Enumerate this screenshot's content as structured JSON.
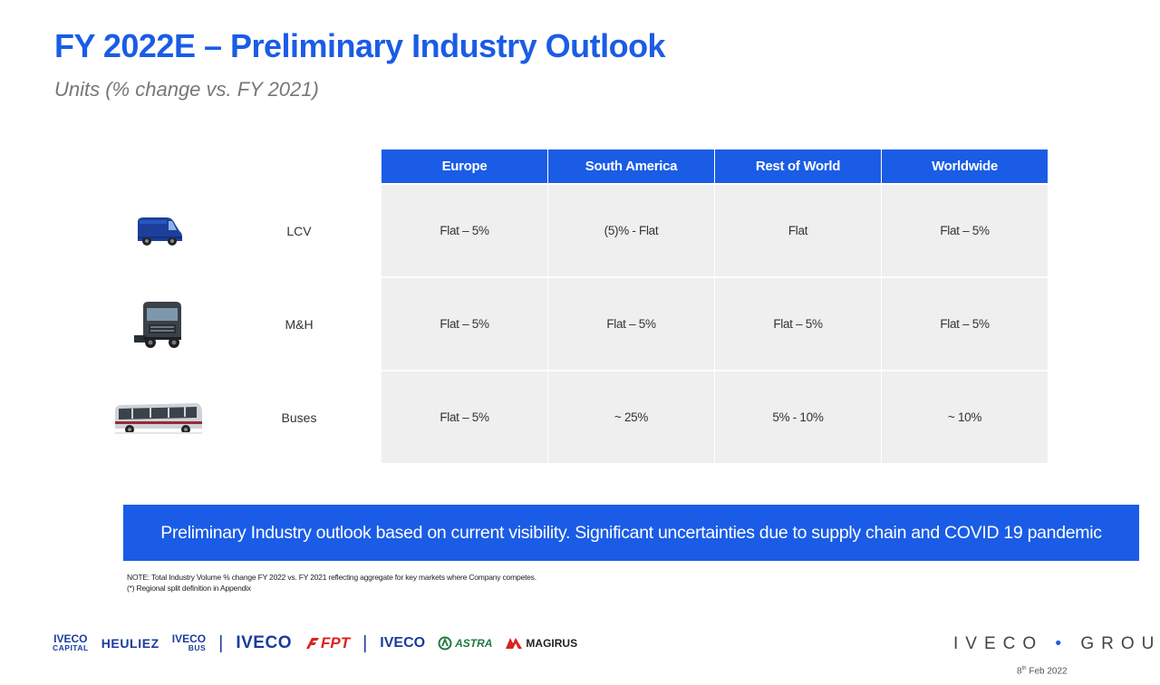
{
  "title": "FY 2022E – Preliminary Industry Outlook",
  "subtitle": "Units (% change vs. FY 2021)",
  "table": {
    "columns": [
      "Europe",
      "South America",
      "Rest of World",
      "Worldwide"
    ],
    "rows": [
      {
        "label": "LCV",
        "icon": "van-icon",
        "values": [
          "Flat – 5%",
          "(5)% - Flat",
          "Flat",
          "Flat – 5%"
        ]
      },
      {
        "label": "M&H",
        "icon": "truck-icon",
        "values": [
          "Flat – 5%",
          "Flat – 5%",
          "Flat – 5%",
          "Flat – 5%"
        ]
      },
      {
        "label": "Buses",
        "icon": "bus-icon",
        "values": [
          "Flat – 5%",
          "~ 25%",
          "5% - 10%",
          "~ 10%"
        ]
      }
    ]
  },
  "banner": "Preliminary Industry outlook based on current visibility. Significant uncertainties due to supply chain and COVID 19 pandemic",
  "notes": [
    "NOTE: Total Industry Volume % change FY 2022 vs. FY 2021 reflecting aggregate for key markets where Company competes.",
    "(*)  Regional split definition in Appendix"
  ],
  "brands": {
    "iveco_capital": [
      "IVECO",
      "CAPITAL"
    ],
    "heuliez": "HEULIEZ",
    "iveco_bus": [
      "IVECO",
      "BUS"
    ],
    "separator": "|",
    "iveco": "IVECO",
    "fpt": "FPT",
    "iveco_defence": "IVECO",
    "astra": "ASTRA",
    "magirus": "MAGIRUS"
  },
  "group_logo": {
    "left": "IVECO",
    "dot": "•",
    "right": "GROUP"
  },
  "date": {
    "day": "8",
    "suffix": "th",
    "rest": " Feb 2022"
  },
  "colors": {
    "accent": "#1a5ce6",
    "cell_bg": "#efefef",
    "brand_navy": "#1a3c9e",
    "fpt_red": "#d9231f",
    "astra_green": "#1f7a3f"
  }
}
